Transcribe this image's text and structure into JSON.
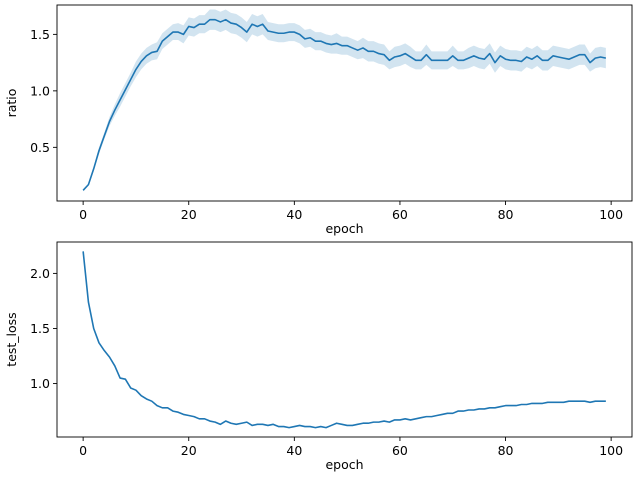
{
  "chart_data": [
    {
      "type": "line",
      "xlabel": "epoch",
      "ylabel": "ratio",
      "xlim": [
        -4.95,
        103.95
      ],
      "ylim": [
        0.025,
        1.76
      ],
      "xticks": [
        "0",
        "20",
        "40",
        "60",
        "80",
        "100"
      ],
      "yticks": [
        "0.5",
        "1.0",
        "1.5"
      ],
      "color": "#1f77b4",
      "band_color": "#1f77b4",
      "series": [
        {
          "x": [
            0,
            1,
            2,
            3,
            4,
            5,
            6,
            7,
            8,
            9,
            10,
            11,
            12,
            13,
            14,
            15,
            16,
            17,
            18,
            19,
            20,
            21,
            22,
            23,
            24,
            25,
            26,
            27,
            28,
            29,
            30,
            31,
            32,
            33,
            34,
            35,
            36,
            37,
            38,
            39,
            40,
            41,
            42,
            43,
            44,
            45,
            46,
            47,
            48,
            49,
            50,
            51,
            52,
            53,
            54,
            55,
            56,
            57,
            58,
            59,
            60,
            61,
            62,
            63,
            64,
            65,
            66,
            67,
            68,
            69,
            70,
            71,
            72,
            73,
            74,
            75,
            76,
            77,
            78,
            79,
            80,
            81,
            82,
            83,
            84,
            85,
            86,
            87,
            88,
            89,
            90,
            91,
            92,
            93,
            94,
            95,
            96,
            97,
            98,
            99
          ],
          "y": [
            0.12,
            0.17,
            0.31,
            0.47,
            0.6,
            0.73,
            0.83,
            0.92,
            1.01,
            1.1,
            1.19,
            1.26,
            1.31,
            1.34,
            1.35,
            1.44,
            1.48,
            1.52,
            1.52,
            1.5,
            1.57,
            1.56,
            1.59,
            1.59,
            1.63,
            1.63,
            1.61,
            1.63,
            1.6,
            1.59,
            1.56,
            1.52,
            1.59,
            1.57,
            1.59,
            1.53,
            1.52,
            1.51,
            1.51,
            1.52,
            1.52,
            1.5,
            1.46,
            1.47,
            1.44,
            1.44,
            1.42,
            1.41,
            1.42,
            1.4,
            1.4,
            1.38,
            1.36,
            1.38,
            1.35,
            1.35,
            1.33,
            1.32,
            1.27,
            1.3,
            1.31,
            1.33,
            1.3,
            1.27,
            1.27,
            1.32,
            1.27,
            1.27,
            1.27,
            1.27,
            1.31,
            1.27,
            1.27,
            1.29,
            1.31,
            1.29,
            1.28,
            1.33,
            1.25,
            1.31,
            1.28,
            1.27,
            1.27,
            1.26,
            1.3,
            1.28,
            1.31,
            1.27,
            1.27,
            1.31,
            1.3,
            1.29,
            1.28,
            1.3,
            1.32,
            1.32,
            1.25,
            1.29,
            1.3,
            1.29
          ],
          "lower": [
            0.11,
            0.16,
            0.29,
            0.44,
            0.57,
            0.69,
            0.78,
            0.86,
            0.95,
            1.04,
            1.12,
            1.19,
            1.24,
            1.27,
            1.28,
            1.37,
            1.41,
            1.45,
            1.45,
            1.42,
            1.49,
            1.48,
            1.51,
            1.51,
            1.54,
            1.54,
            1.52,
            1.54,
            1.51,
            1.5,
            1.47,
            1.43,
            1.5,
            1.48,
            1.5,
            1.45,
            1.44,
            1.43,
            1.43,
            1.44,
            1.44,
            1.42,
            1.38,
            1.39,
            1.36,
            1.36,
            1.34,
            1.33,
            1.33,
            1.32,
            1.32,
            1.3,
            1.28,
            1.29,
            1.26,
            1.26,
            1.24,
            1.23,
            1.19,
            1.21,
            1.22,
            1.24,
            1.21,
            1.19,
            1.19,
            1.23,
            1.19,
            1.19,
            1.19,
            1.19,
            1.22,
            1.19,
            1.19,
            1.2,
            1.22,
            1.2,
            1.19,
            1.24,
            1.16,
            1.22,
            1.19,
            1.18,
            1.18,
            1.17,
            1.21,
            1.19,
            1.22,
            1.18,
            1.18,
            1.22,
            1.21,
            1.2,
            1.19,
            1.21,
            1.23,
            1.23,
            1.17,
            1.2,
            1.21,
            1.2
          ],
          "upper": [
            0.13,
            0.18,
            0.33,
            0.5,
            0.63,
            0.77,
            0.88,
            0.98,
            1.07,
            1.16,
            1.26,
            1.33,
            1.38,
            1.41,
            1.43,
            1.51,
            1.55,
            1.59,
            1.6,
            1.58,
            1.65,
            1.64,
            1.67,
            1.67,
            1.72,
            1.72,
            1.7,
            1.72,
            1.69,
            1.68,
            1.65,
            1.61,
            1.68,
            1.66,
            1.68,
            1.61,
            1.6,
            1.59,
            1.59,
            1.6,
            1.6,
            1.58,
            1.54,
            1.55,
            1.52,
            1.52,
            1.5,
            1.49,
            1.51,
            1.48,
            1.48,
            1.46,
            1.44,
            1.47,
            1.44,
            1.44,
            1.42,
            1.41,
            1.35,
            1.39,
            1.4,
            1.42,
            1.39,
            1.35,
            1.35,
            1.41,
            1.35,
            1.35,
            1.35,
            1.35,
            1.4,
            1.35,
            1.35,
            1.38,
            1.4,
            1.38,
            1.37,
            1.42,
            1.34,
            1.4,
            1.37,
            1.36,
            1.36,
            1.35,
            1.39,
            1.37,
            1.4,
            1.36,
            1.36,
            1.4,
            1.39,
            1.38,
            1.37,
            1.39,
            1.41,
            1.41,
            1.33,
            1.38,
            1.39,
            1.38
          ]
        }
      ]
    },
    {
      "type": "line",
      "xlabel": "epoch",
      "ylabel": "test_loss",
      "xlim": [
        -4.95,
        103.95
      ],
      "ylim": [
        0.515,
        2.285
      ],
      "xticks": [
        "0",
        "20",
        "40",
        "60",
        "80",
        "100"
      ],
      "yticks": [
        "1.0",
        "1.5",
        "2.0"
      ],
      "color": "#1f77b4",
      "series": [
        {
          "x": [
            0,
            1,
            2,
            3,
            4,
            5,
            6,
            7,
            8,
            9,
            10,
            11,
            12,
            13,
            14,
            15,
            16,
            17,
            18,
            19,
            20,
            21,
            22,
            23,
            24,
            25,
            26,
            27,
            28,
            29,
            30,
            31,
            32,
            33,
            34,
            35,
            36,
            37,
            38,
            39,
            40,
            41,
            42,
            43,
            44,
            45,
            46,
            47,
            48,
            49,
            50,
            51,
            52,
            53,
            54,
            55,
            56,
            57,
            58,
            59,
            60,
            61,
            62,
            63,
            64,
            65,
            66,
            67,
            68,
            69,
            70,
            71,
            72,
            73,
            74,
            75,
            76,
            77,
            78,
            79,
            80,
            81,
            82,
            83,
            84,
            85,
            86,
            87,
            88,
            89,
            90,
            91,
            92,
            93,
            94,
            95,
            96,
            97,
            98,
            99
          ],
          "y": [
            2.2,
            1.74,
            1.5,
            1.37,
            1.3,
            1.24,
            1.16,
            1.05,
            1.04,
            0.96,
            0.94,
            0.89,
            0.86,
            0.84,
            0.8,
            0.78,
            0.78,
            0.75,
            0.74,
            0.72,
            0.71,
            0.7,
            0.68,
            0.68,
            0.66,
            0.65,
            0.63,
            0.66,
            0.64,
            0.63,
            0.64,
            0.65,
            0.62,
            0.63,
            0.63,
            0.62,
            0.63,
            0.61,
            0.61,
            0.6,
            0.61,
            0.62,
            0.61,
            0.61,
            0.6,
            0.61,
            0.6,
            0.62,
            0.64,
            0.63,
            0.62,
            0.62,
            0.63,
            0.64,
            0.64,
            0.65,
            0.65,
            0.66,
            0.65,
            0.67,
            0.67,
            0.68,
            0.67,
            0.68,
            0.69,
            0.7,
            0.7,
            0.71,
            0.72,
            0.73,
            0.73,
            0.75,
            0.75,
            0.76,
            0.76,
            0.77,
            0.77,
            0.78,
            0.78,
            0.79,
            0.8,
            0.8,
            0.8,
            0.81,
            0.81,
            0.82,
            0.82,
            0.82,
            0.83,
            0.83,
            0.83,
            0.83,
            0.84,
            0.84,
            0.84,
            0.84,
            0.83,
            0.84,
            0.84,
            0.84
          ]
        }
      ]
    }
  ]
}
